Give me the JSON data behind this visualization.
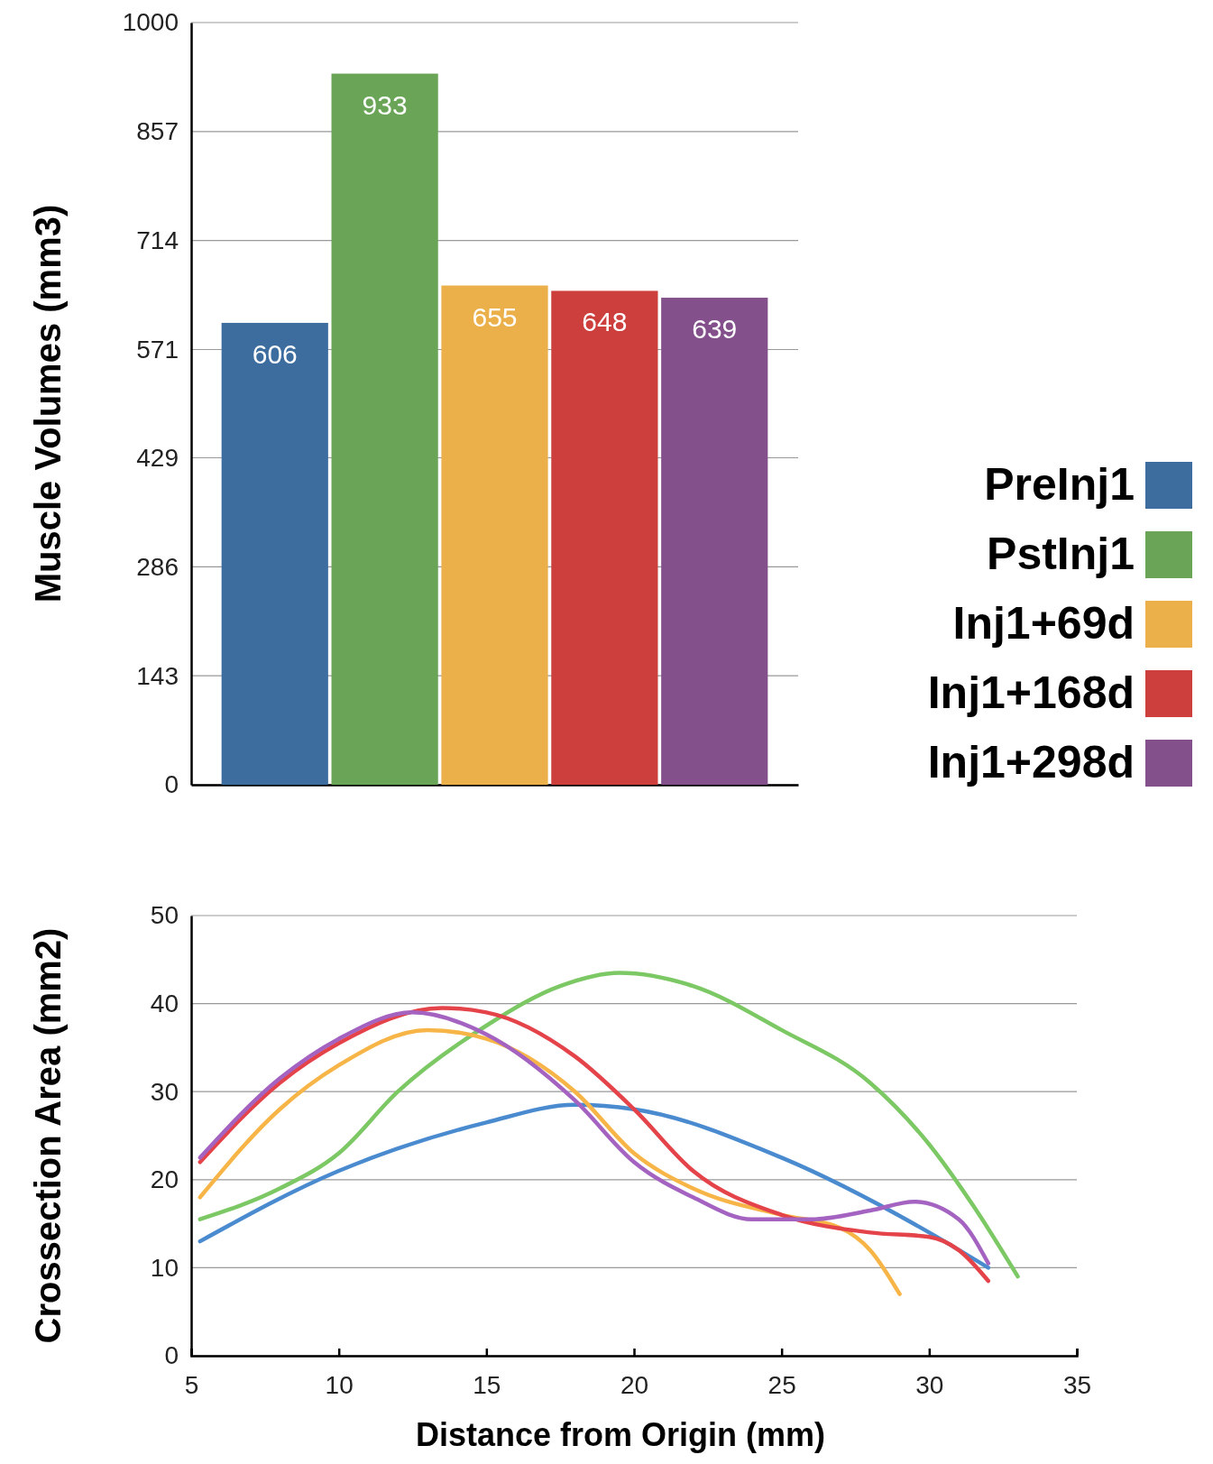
{
  "chart_data": [
    {
      "type": "bar",
      "ylabel": "Muscle Volumes (mm3)",
      "categories": [
        null
      ],
      "ylim": [
        0,
        1000
      ],
      "yticks": [
        0,
        143,
        286,
        429,
        571,
        714,
        857,
        1000
      ],
      "grid": "y",
      "legend": "right",
      "data_labels": true,
      "tick_labels": "y",
      "series": [
        {
          "name": "PreInj1",
          "color": "#3d6c9e",
          "values": [
            606
          ]
        },
        {
          "name": "PstInj1",
          "color": "#6aa457",
          "values": [
            933
          ]
        },
        {
          "name": "Inj1+69d",
          "color": "#ebb04a",
          "values": [
            655
          ]
        },
        {
          "name": "Inj1+168d",
          "color": "#cc3f3d",
          "values": [
            648
          ]
        },
        {
          "name": "Inj1+298d",
          "color": "#83508c",
          "values": [
            639
          ]
        }
      ]
    },
    {
      "type": "line",
      "ylabel": "Crossection Area (mm2)",
      "xlabel": "Distance from Origin (mm)",
      "xlim": [
        5,
        35
      ],
      "xticks": [
        5,
        10,
        15,
        20,
        25,
        30,
        35
      ],
      "ylim": [
        0,
        50
      ],
      "yticks": [
        0,
        10,
        20,
        30,
        40,
        50
      ],
      "grid": "y",
      "line_style": "solid",
      "series": [
        {
          "color": "#4a8bd0",
          "x": [
            5.3,
            10,
            15,
            18,
            20,
            25,
            30,
            32
          ],
          "values": [
            13,
            21,
            26.5,
            28.5,
            28,
            22.5,
            14,
            10
          ]
        },
        {
          "color": "#7cc864",
          "x": [
            5.3,
            8,
            10,
            12,
            15,
            17.5,
            19.5,
            22,
            25,
            28,
            30,
            31.5,
            33
          ],
          "values": [
            15.5,
            19,
            23,
            30,
            37.5,
            42,
            43.5,
            42,
            37,
            31,
            24,
            17,
            9
          ]
        },
        {
          "color": "#f7b548",
          "x": [
            5.3,
            8,
            10,
            13,
            15,
            18,
            20,
            22,
            25,
            27,
            28,
            29
          ],
          "values": [
            18,
            28,
            33,
            37,
            36,
            30,
            23,
            19,
            16,
            14.5,
            12,
            7
          ]
        },
        {
          "color": "#e5434a",
          "x": [
            5.3,
            8,
            10,
            13.5,
            15,
            18,
            20,
            22,
            25,
            28,
            30,
            31,
            32
          ],
          "values": [
            22,
            31,
            35.5,
            39.5,
            39,
            34,
            28,
            21,
            16,
            14,
            13.5,
            12,
            8.5
          ]
        },
        {
          "color": "#a463c0",
          "x": [
            5.3,
            8,
            10,
            12.5,
            15,
            18,
            20,
            22,
            24,
            26,
            28,
            29.5,
            31,
            32
          ],
          "values": [
            22.5,
            31.5,
            36,
            39,
            36.5,
            29,
            22,
            18,
            15.5,
            15.5,
            16.5,
            17.5,
            15.5,
            10.5
          ]
        }
      ]
    }
  ]
}
